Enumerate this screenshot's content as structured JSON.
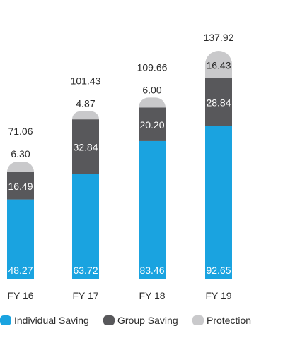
{
  "chart_data": {
    "type": "bar",
    "stacked": true,
    "categories": [
      "FY 16",
      "FY 17",
      "FY 18",
      "FY 19"
    ],
    "series": [
      {
        "name": "Individual Saving",
        "values": [
          48.27,
          63.72,
          83.46,
          92.65
        ],
        "color": "#1aa3e0",
        "label_color": "#ffffff"
      },
      {
        "name": "Group Saving",
        "values": [
          16.49,
          32.84,
          20.2,
          28.84
        ],
        "color": "#58585b",
        "label_color": "#ffffff"
      },
      {
        "name": "Protection",
        "values": [
          6.3,
          4.87,
          6.0,
          16.43
        ],
        "color": "#c9c9cb",
        "label_color": "#2a2a2a"
      }
    ],
    "totals": [
      "71.06",
      "101.43",
      "109.66",
      "137.92"
    ],
    "value_labels": [
      [
        "48.27",
        "63.72",
        "83.46",
        "92.65"
      ],
      [
        "16.49",
        "32.84",
        "20.20",
        "28.84"
      ],
      [
        "6.30",
        "4.87",
        "6.00",
        "16.43"
      ]
    ],
    "legend_position": "bottom",
    "grid": false,
    "ylim": [
      0,
      137.92
    ]
  }
}
